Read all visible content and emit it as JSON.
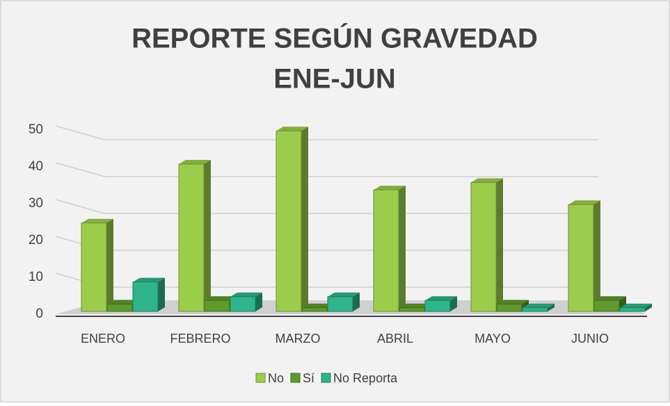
{
  "chart_data": {
    "type": "bar3d",
    "title": [
      "REPORTE SEGÚN GRAVEDAD",
      "ENE-JUN"
    ],
    "categories": [
      "ENERO",
      "FEBRERO",
      "MARZO",
      "ABRIL",
      "MAYO",
      "JUNIO"
    ],
    "series": [
      {
        "name": "No",
        "color": "#9ccc4c",
        "values": [
          24,
          40,
          49,
          33,
          35,
          29
        ]
      },
      {
        "name": "Sí",
        "color": "#5f9a2c",
        "values": [
          2,
          3,
          1,
          1,
          2,
          3
        ]
      },
      {
        "name": "No Reporta",
        "color": "#2fb38a",
        "values": [
          8,
          4,
          4,
          3,
          1,
          1
        ]
      }
    ],
    "ylim": [
      0,
      50
    ],
    "yticks": [
      0,
      10,
      20,
      30,
      40,
      50
    ],
    "grid": true,
    "legend": "bottom"
  }
}
